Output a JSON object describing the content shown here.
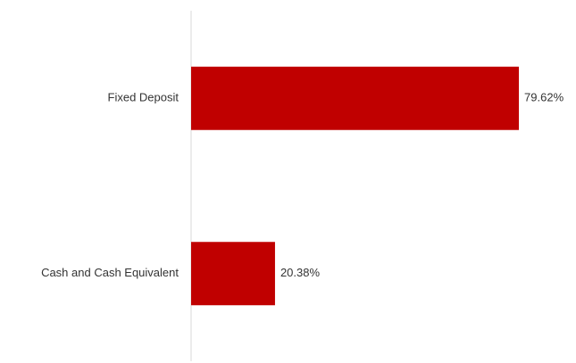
{
  "chart_data": {
    "type": "bar",
    "orientation": "horizontal",
    "categories": [
      "Fixed Deposit",
      "Cash and Cash Equivalent"
    ],
    "values": [
      79.62,
      20.38
    ],
    "value_labels": [
      "79.62%",
      "20.38%"
    ],
    "unit": "%",
    "xlim": [
      0,
      100
    ],
    "grid": false,
    "legend": "none",
    "bar_color": "#c00000",
    "axis_color": "#d9d9d9"
  }
}
